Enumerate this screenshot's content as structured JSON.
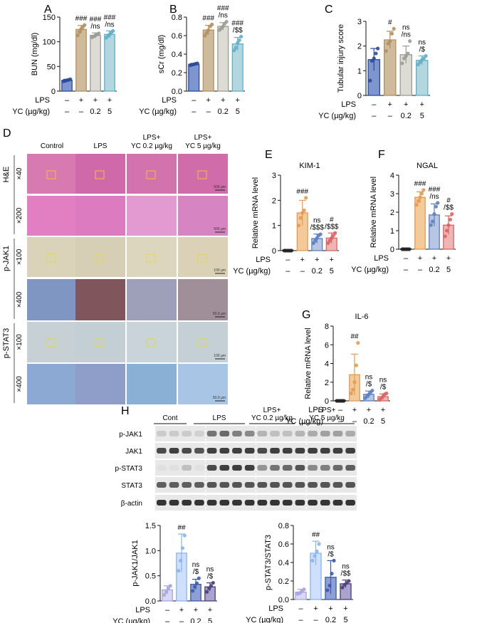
{
  "chart_data": [
    {
      "panel": "A",
      "type": "bar",
      "ylabel": "BUN (mg/dl)",
      "ylim": [
        0,
        150
      ],
      "yticks": [
        "0",
        "50",
        "100",
        "150"
      ],
      "values": [
        22,
        125,
        113,
        115
      ],
      "errors": [
        2,
        8,
        5,
        7
      ],
      "points": [
        [
          20,
          21,
          22,
          23,
          24
        ],
        [
          113,
          120,
          126,
          130,
          134
        ],
        [
          109,
          111,
          113,
          115,
          117
        ],
        [
          108,
          112,
          115,
          119,
          122
        ]
      ],
      "annotations": [
        [],
        [
          "###"
        ],
        [
          "###",
          "/ns"
        ],
        [
          "###",
          "/ns"
        ]
      ],
      "colors": [
        "#7d96cf",
        "#cdbb9c",
        "#dcdcd4",
        "#b4d7df"
      ],
      "dot_colors": [
        "#2c4a9a",
        "#b59060",
        "#9c9c96",
        "#5fb0c8"
      ]
    },
    {
      "panel": "B",
      "type": "bar",
      "ylabel": "sCr (mg/dl)",
      "ylim": [
        0,
        0.8
      ],
      "yticks": [
        "0.0",
        "0.2",
        "0.4",
        "0.6",
        "0.8"
      ],
      "values": [
        0.29,
        0.66,
        0.7,
        0.51
      ],
      "errors": [
        0.01,
        0.05,
        0.04,
        0.07
      ],
      "points": [
        [
          0.28,
          0.285,
          0.29,
          0.295,
          0.3
        ],
        [
          0.6,
          0.63,
          0.66,
          0.7,
          0.72
        ],
        [
          0.66,
          0.68,
          0.7,
          0.73,
          0.75
        ],
        [
          0.44,
          0.47,
          0.52,
          0.55,
          0.59
        ]
      ],
      "annotations": [
        [],
        [
          "###"
        ],
        [
          "###",
          "/ns"
        ],
        [
          "###",
          "/$$"
        ]
      ],
      "colors": [
        "#7d96cf",
        "#cdbb9c",
        "#dcdcd4",
        "#b4d7df"
      ],
      "dot_colors": [
        "#2c4a9a",
        "#b59060",
        "#9c9c96",
        "#5fb0c8"
      ]
    },
    {
      "panel": "C",
      "type": "bar",
      "ylabel": "Tubular injury score",
      "ylim": [
        0,
        3
      ],
      "yticks": [
        "0",
        "1",
        "2",
        "3"
      ],
      "values": [
        1.45,
        2.25,
        1.65,
        1.42
      ],
      "errors": [
        0.45,
        0.35,
        0.35,
        0.18
      ],
      "points": [
        [
          0.6,
          1.4,
          1.5,
          1.7,
          1.9
        ],
        [
          1.8,
          2.1,
          2.2,
          2.5,
          2.7
        ],
        [
          1.3,
          1.5,
          1.6,
          1.7,
          2.2
        ],
        [
          1.25,
          1.35,
          1.45,
          1.5,
          1.6
        ]
      ],
      "annotations": [
        [],
        [
          "#"
        ],
        [
          "ns",
          "/ns"
        ],
        [
          "ns",
          "/$"
        ]
      ],
      "colors": [
        "#7d96cf",
        "#cdbb9c",
        "#dcdcd4",
        "#b4d7df"
      ],
      "dot_colors": [
        "#2c4a9a",
        "#b59060",
        "#9c9c96",
        "#5fb0c8"
      ]
    },
    {
      "panel": "E",
      "title": "KIM-1",
      "type": "bar",
      "ylabel": "Relative mRNA level",
      "ylim": [
        0,
        3
      ],
      "yticks": [
        "0",
        "1",
        "2",
        "3"
      ],
      "values": [
        0.02,
        1.5,
        0.48,
        0.5
      ],
      "errors": [
        0.0,
        0.5,
        0.18,
        0.2
      ],
      "points": [
        [
          0,
          0,
          0,
          0,
          0
        ],
        [
          1.0,
          1.3,
          1.5,
          1.6,
          2.1
        ],
        [
          0.3,
          0.4,
          0.5,
          0.6,
          0.65
        ],
        [
          0.3,
          0.4,
          0.5,
          0.6,
          0.7
        ]
      ],
      "annotations": [
        [],
        [
          "###"
        ],
        [
          "ns",
          "/$$$"
        ],
        [
          "#",
          "/$$$"
        ]
      ],
      "colors": [
        "#ffffff",
        "#f3cb9a",
        "#b7c6e3",
        "#eeb5b5"
      ],
      "dot_colors": [
        "#222222",
        "#e49a52",
        "#5d7fbf",
        "#d96464"
      ]
    },
    {
      "panel": "F",
      "title": "NGAL",
      "type": "bar",
      "ylabel": "Relative mRNA level",
      "ylim": [
        0,
        4
      ],
      "yticks": [
        "0",
        "1",
        "2",
        "3",
        "4"
      ],
      "values": [
        0.02,
        2.8,
        1.85,
        1.3
      ],
      "errors": [
        0.0,
        0.3,
        0.6,
        0.5
      ],
      "points": [
        [
          0,
          0,
          0,
          0,
          0
        ],
        [
          2.4,
          2.6,
          2.8,
          3.0,
          3.2
        ],
        [
          1.3,
          1.5,
          1.9,
          2.3,
          2.5
        ],
        [
          0.7,
          1.0,
          1.3,
          1.6,
          1.9
        ]
      ],
      "annotations": [
        [],
        [
          "###"
        ],
        [
          "###",
          "/ns"
        ],
        [
          "#",
          "/$$"
        ]
      ],
      "colors": [
        "#ffffff",
        "#f3cb9a",
        "#b7c6e3",
        "#eeb5b5"
      ],
      "dot_colors": [
        "#222222",
        "#e49a52",
        "#5d7fbf",
        "#d96464"
      ]
    },
    {
      "panel": "G",
      "title": "IL-6",
      "type": "bar",
      "ylabel": "Relative mRNA level",
      "ylim": [
        0,
        8
      ],
      "yticks": [
        "0",
        "2",
        "4",
        "6",
        "8"
      ],
      "values": [
        0.05,
        2.8,
        0.7,
        0.45
      ],
      "errors": [
        0.0,
        2.2,
        0.35,
        0.3
      ],
      "points": [
        [
          0,
          0,
          0,
          0,
          0
        ],
        [
          0.8,
          1.2,
          2.0,
          3.8,
          6.2
        ],
        [
          0.3,
          0.5,
          0.7,
          0.9,
          1.1
        ],
        [
          0.1,
          0.3,
          0.5,
          0.7,
          0.8
        ]
      ],
      "annotations": [
        [],
        [
          "##"
        ],
        [
          "ns",
          "/$"
        ],
        [
          "ns",
          "/$"
        ]
      ],
      "colors": [
        "#ffffff",
        "#f3cb9a",
        "#b7c6e3",
        "#eeb5b5"
      ],
      "dot_colors": [
        "#222222",
        "#e49a52",
        "#5d7fbf",
        "#d96464"
      ]
    },
    {
      "panel": "H1",
      "type": "bar",
      "ylabel": "p-JAK1/JAK1",
      "ylim": [
        0,
        1.5
      ],
      "yticks": [
        "0.0",
        "0.5",
        "1.0",
        "1.5"
      ],
      "values": [
        0.22,
        0.95,
        0.33,
        0.28
      ],
      "errors": [
        0.08,
        0.38,
        0.1,
        0.08
      ],
      "points": [
        [
          0.12,
          0.18,
          0.25,
          0.3
        ],
        [
          0.6,
          0.8,
          1.05,
          1.3
        ],
        [
          0.2,
          0.28,
          0.35,
          0.45
        ],
        [
          0.18,
          0.25,
          0.3,
          0.36
        ]
      ],
      "annotations": [
        [],
        [
          "##"
        ],
        [
          "ns",
          "/$"
        ],
        [
          "ns",
          "/$"
        ]
      ],
      "colors": [
        "#dad9f5",
        "#cfe0ff",
        "#8e9fd6",
        "#a9a3cd"
      ],
      "dot_colors": [
        "#a7a5dd",
        "#8ab3f3",
        "#3b5aaa",
        "#4a3f7a"
      ]
    },
    {
      "panel": "H2",
      "type": "bar",
      "ylabel": "p-STAT3/STAT3",
      "ylim": [
        0,
        0.8
      ],
      "yticks": [
        "0.0",
        "0.2",
        "0.4",
        "0.6",
        "0.8"
      ],
      "values": [
        0.08,
        0.5,
        0.24,
        0.17
      ],
      "errors": [
        0.03,
        0.13,
        0.18,
        0.04
      ],
      "points": [
        [
          0.06,
          0.07,
          0.09,
          0.11
        ],
        [
          0.42,
          0.47,
          0.52,
          0.6
        ],
        [
          0.1,
          0.15,
          0.28,
          0.42
        ],
        [
          0.13,
          0.16,
          0.18,
          0.2
        ]
      ],
      "annotations": [
        [],
        [
          "##"
        ],
        [
          "ns",
          "/$"
        ],
        [
          "ns",
          "/$$"
        ]
      ],
      "colors": [
        "#dad9f5",
        "#cfe0ff",
        "#8e9fd6",
        "#a9a3cd"
      ],
      "dot_colors": [
        "#a7a5dd",
        "#8ab3f3",
        "#3b5aaa",
        "#4a3f7a"
      ]
    }
  ],
  "treatment_table": {
    "lps_label": "LPS",
    "yc_label": "YC (µg/kg)",
    "lps_row": [
      "–",
      "+",
      "+",
      "+"
    ],
    "yc_row": [
      "–",
      "–",
      "0.2",
      "5"
    ]
  },
  "panel_d": {
    "letter": "D",
    "columns": [
      "Control",
      "LPS",
      "LPS+\nYC 0.2 µg/kg",
      "LPS+\nYC 5 µg/kg"
    ],
    "groups": [
      "H&E",
      "p-JAK1",
      "p-STAT3"
    ],
    "magnifications": [
      "×40",
      "×200",
      "×100",
      "×400",
      "×100",
      "×400"
    ],
    "scale_bars": [
      "500 µm",
      "500 µm",
      "100 µm",
      "50.0 µm",
      "100 µm",
      "50.0 µm"
    ]
  },
  "panel_h": {
    "letter": "H",
    "groups": [
      "Cont",
      "LPS",
      "LPS+\nYC 0.2 µg/kg",
      "LPS+\nYC 5 µg/kg"
    ],
    "bands": [
      "p-JAK1",
      "JAK1",
      "p-STAT3",
      "STAT3",
      "β-actin"
    ]
  }
}
